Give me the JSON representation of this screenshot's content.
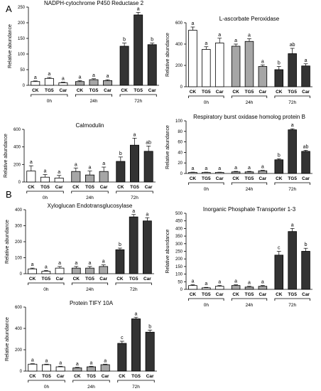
{
  "figure": {
    "panel_labels": [
      "A",
      "B"
    ]
  },
  "bar_colors": {
    "0h": "#ffffff",
    "24h": "#a6a6a6",
    "72h": "#333333"
  },
  "chart_data": [
    {
      "type": "bar",
      "panel": "A",
      "title": "NADPH-cytochrome P450 Reductase 2",
      "ylabel": "Relative abundance",
      "ylim": [
        0,
        250
      ],
      "yticks": [
        0,
        50,
        100,
        150,
        200,
        250
      ],
      "categories": [
        "CK",
        "TG5",
        "Car",
        "CK",
        "TG5",
        "Car",
        "CK",
        "TG5",
        "Car"
      ],
      "groups": [
        {
          "label": "0h",
          "span": [
            0,
            2
          ]
        },
        {
          "label": "24h",
          "span": [
            3,
            5
          ]
        },
        {
          "label": "72h",
          "span": [
            6,
            8
          ]
        }
      ],
      "values": [
        12,
        22,
        8,
        12,
        18,
        15,
        125,
        225,
        130
      ],
      "errors": [
        2,
        3,
        2,
        3,
        3,
        3,
        10,
        8,
        5
      ],
      "significance": [
        "a",
        "a",
        "a",
        "a",
        "a",
        "a",
        "b",
        "a",
        "b"
      ]
    },
    {
      "type": "bar",
      "panel": "A",
      "title": "L-ascorbate Peroxidase",
      "ylabel": "Relative abundance",
      "ylim": [
        0,
        600
      ],
      "yticks": [
        0,
        200,
        400,
        600
      ],
      "categories": [
        "CK",
        "TG5",
        "Car",
        "CK",
        "TG5",
        "Car",
        "CK",
        "TG5",
        "Car"
      ],
      "groups": [
        {
          "label": "0h",
          "span": [
            0,
            2
          ]
        },
        {
          "label": "24h",
          "span": [
            3,
            5
          ]
        },
        {
          "label": "72h",
          "span": [
            6,
            8
          ]
        }
      ],
      "values": [
        530,
        350,
        410,
        380,
        425,
        190,
        160,
        310,
        195
      ],
      "errors": [
        30,
        25,
        45,
        20,
        25,
        15,
        30,
        50,
        20
      ],
      "significance": [
        "a",
        "a",
        "a",
        "a",
        "a",
        "a",
        "b",
        "ab",
        "a"
      ]
    },
    {
      "type": "bar",
      "panel": "A",
      "title": "Calmodulin",
      "ylabel": "Relative abundance",
      "ylim": [
        0,
        600
      ],
      "yticks": [
        0,
        200,
        400,
        600
      ],
      "categories": [
        "CK",
        "TG5",
        "Car",
        "CK",
        "TG5",
        "Car",
        "CK",
        "TG5",
        "Car"
      ],
      "groups": [
        {
          "label": "0h",
          "span": [
            0,
            2
          ]
        },
        {
          "label": "24h",
          "span": [
            3,
            5
          ]
        },
        {
          "label": "72h",
          "span": [
            6,
            8
          ]
        }
      ],
      "values": [
        125,
        55,
        45,
        120,
        80,
        120,
        235,
        420,
        350
      ],
      "errors": [
        60,
        30,
        30,
        40,
        45,
        50,
        50,
        80,
        60
      ],
      "significance": [
        "a",
        "a",
        "a",
        "a",
        "a",
        "a",
        "b",
        "a",
        "ab"
      ]
    },
    {
      "type": "bar",
      "panel": "A",
      "title": "Respiratory burst oxidase homolog protein B",
      "ylabel": "Relative abundance",
      "ylim": [
        0,
        100
      ],
      "yticks": [
        0,
        20,
        40,
        60,
        80,
        100
      ],
      "categories": [
        "CK",
        "TG5",
        "Car",
        "CK",
        "TG5",
        "Car",
        "CK",
        "TG5",
        "Car"
      ],
      "groups": [
        {
          "label": "0h",
          "span": [
            0,
            2
          ]
        },
        {
          "label": "24h",
          "span": [
            3,
            5
          ]
        },
        {
          "label": "72h",
          "span": [
            6,
            8
          ]
        }
      ],
      "values": [
        2,
        2,
        2,
        3,
        3,
        5,
        26,
        83,
        42
      ],
      "errors": [
        0.5,
        0.5,
        0.5,
        1,
        1,
        1,
        2,
        2,
        2
      ],
      "significance": [
        "a",
        "a",
        "a",
        "a",
        "a",
        "a",
        "b",
        "a",
        "ab"
      ]
    },
    {
      "type": "bar",
      "panel": "B",
      "title": "Xyloglucan Endotransglucosylase",
      "ylabel": "Relative abundance",
      "ylim": [
        0,
        400
      ],
      "yticks": [
        0,
        100,
        200,
        300,
        400
      ],
      "categories": [
        "CK",
        "TG5",
        "Car",
        "CK",
        "TG5",
        "Car",
        "CK",
        "TG5",
        "Car"
      ],
      "groups": [
        {
          "label": "0h",
          "span": [
            0,
            2
          ]
        },
        {
          "label": "24h",
          "span": [
            3,
            5
          ]
        },
        {
          "label": "72h",
          "span": [
            6,
            8
          ]
        }
      ],
      "values": [
        30,
        15,
        35,
        35,
        35,
        45,
        150,
        355,
        330
      ],
      "errors": [
        5,
        5,
        10,
        10,
        10,
        10,
        10,
        15,
        20
      ],
      "significance": [
        "a",
        "a",
        "a",
        "a",
        "a",
        "a",
        "b",
        "a",
        "a"
      ]
    },
    {
      "type": "bar",
      "panel": "B",
      "title": "Inorganic Phosphate Transporter 1-3",
      "ylabel": "Relative abundance",
      "ylim": [
        0,
        500
      ],
      "yticks": [
        0,
        50,
        100,
        150,
        200,
        250,
        300,
        350,
        400,
        450,
        500
      ],
      "categories": [
        "CK",
        "TG5",
        "Car",
        "CK",
        "TG5",
        "Car",
        "CK",
        "TG5",
        "Car"
      ],
      "groups": [
        {
          "label": "0h",
          "span": [
            0,
            2
          ]
        },
        {
          "label": "24h",
          "span": [
            3,
            5
          ]
        },
        {
          "label": "72h",
          "span": [
            6,
            8
          ]
        }
      ],
      "values": [
        25,
        10,
        20,
        25,
        15,
        20,
        225,
        380,
        250
      ],
      "errors": [
        5,
        3,
        5,
        5,
        5,
        5,
        25,
        20,
        20
      ],
      "significance": [
        "a",
        "a",
        "a",
        "a",
        "a",
        "a",
        "c",
        "a",
        "b"
      ]
    },
    {
      "type": "bar",
      "panel": "B",
      "title": "Protein TIFY 10A",
      "ylabel": "Relative abundance",
      "ylim": [
        0,
        600
      ],
      "yticks": [
        0,
        200,
        400,
        600
      ],
      "categories": [
        "CK",
        "TG5",
        "Car",
        "CK",
        "TG5",
        "Car",
        "CK",
        "TG5",
        "Car"
      ],
      "groups": [
        {
          "label": "0h",
          "span": [
            0,
            2
          ]
        },
        {
          "label": "24h",
          "span": [
            3,
            5
          ]
        },
        {
          "label": "72h",
          "span": [
            6,
            8
          ]
        }
      ],
      "values": [
        65,
        60,
        40,
        30,
        40,
        60,
        260,
        490,
        365
      ],
      "errors": [
        5,
        5,
        5,
        5,
        5,
        5,
        20,
        15,
        20
      ],
      "significance": [
        "a",
        "a",
        "a",
        "a",
        "a",
        "a",
        "c",
        "a",
        "b"
      ]
    }
  ]
}
